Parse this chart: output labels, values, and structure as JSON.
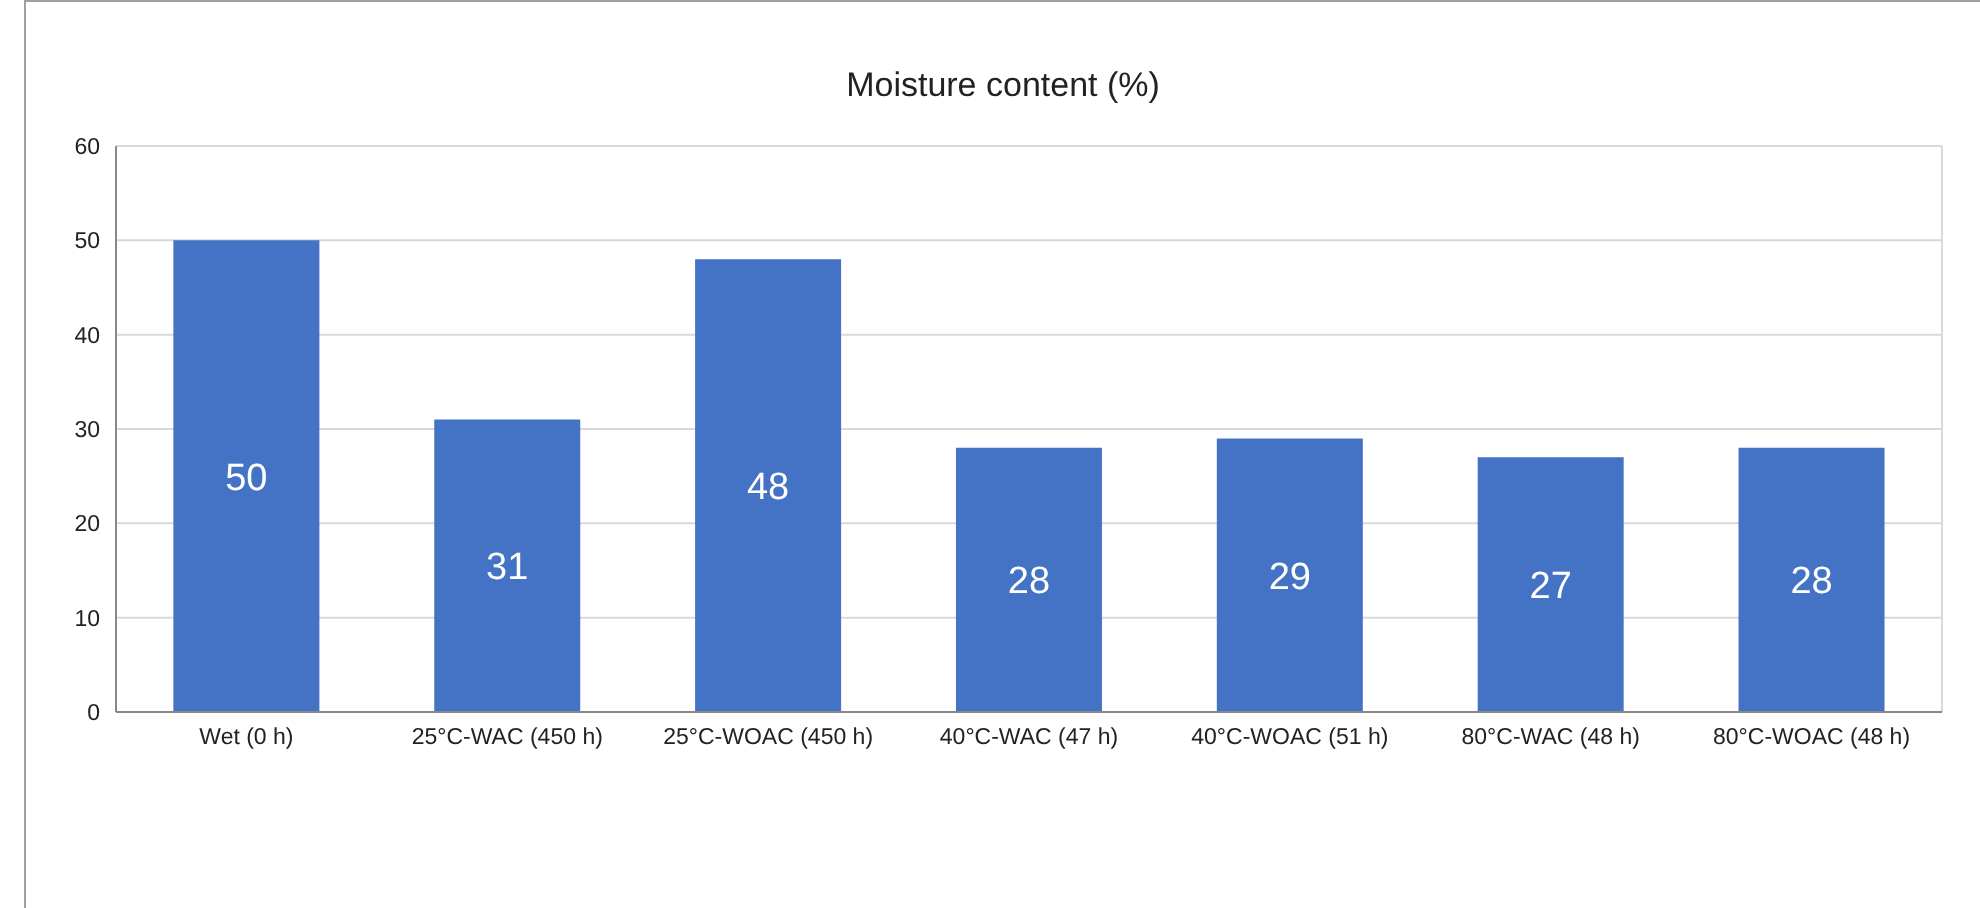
{
  "chart_data": {
    "type": "bar",
    "title": "Moisture content (%)",
    "categories": [
      "Wet (0 h)",
      "25°C-WAC (450 h)",
      "25°C-WOAC (450 h)",
      "40°C-WAC (47 h)",
      "40°C-WOAC (51 h)",
      "80°C-WAC (48 h)",
      "80°C-WOAC (48 h)"
    ],
    "values": [
      50,
      31,
      48,
      28,
      29,
      27,
      28
    ],
    "color": "#4472c4",
    "ylim": [
      0,
      60
    ],
    "yticks": [
      0,
      10,
      20,
      30,
      40,
      50,
      60
    ],
    "grid": "y",
    "data_labels": true,
    "legend": false
  }
}
